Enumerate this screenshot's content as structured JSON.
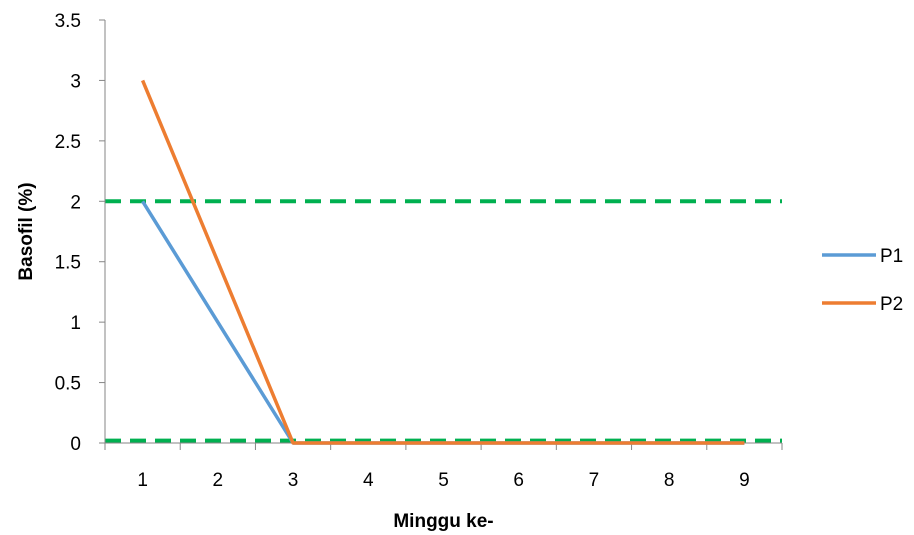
{
  "chart_data": {
    "type": "line",
    "xlabel": "Minggu ke-",
    "ylabel": "Basofil (%)",
    "categories": [
      "1",
      "2",
      "3",
      "4",
      "5",
      "6",
      "7",
      "8",
      "9"
    ],
    "y_ticks": [
      "0",
      "0.5",
      "1",
      "1.5",
      "2",
      "2.5",
      "3",
      "3.5"
    ],
    "ylim": [
      0,
      3.5
    ],
    "grid": false,
    "legend_position": "right",
    "series": [
      {
        "name": "P1",
        "color": "#5B9BD5",
        "values": [
          2,
          1,
          0,
          0,
          0,
          0,
          0,
          0,
          0
        ]
      },
      {
        "name": "P2",
        "color": "#ED7D31",
        "values": [
          3,
          1.5,
          0,
          0,
          0,
          0,
          0,
          0,
          0
        ]
      }
    ],
    "reference_lines": [
      {
        "y": 2,
        "color": "#00B050",
        "style": "dashed"
      },
      {
        "y": 0.02,
        "color": "#00B050",
        "style": "dashed"
      }
    ]
  }
}
